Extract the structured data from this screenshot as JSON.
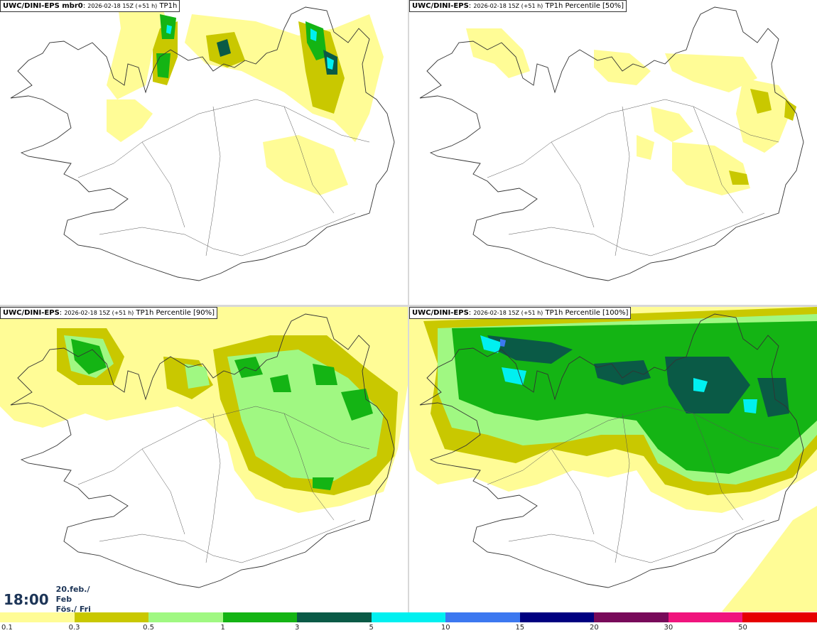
{
  "panels": [
    {
      "model": "UWC/DINI-EPS mbr0",
      "run": "2026-02-18 15Z (+51 h)",
      "field": "TP1h"
    },
    {
      "model": "UWC/DINI-EPS",
      "run": "2026-02-18 15Z (+51 h)",
      "field": "TP1h Percentile [50%]"
    },
    {
      "model": "UWC/DINI-EPS",
      "run": "2026-02-18 15Z (+51 h)",
      "field": "TP1h Percentile [90%]"
    },
    {
      "model": "UWC/DINI-EPS",
      "run": "2026-02-18 15Z (+51 h)",
      "field": "TP1h Percentile [100%]"
    }
  ],
  "valid_time": {
    "time": "18:00",
    "date_line1": "20.feb./ Feb",
    "date_line2": "Fös./ Fri"
  },
  "legend": {
    "colors": [
      "#fffc96",
      "#c9c800",
      "#a0f882",
      "#14b414",
      "#0a5a46",
      "#00f0f0",
      "#3c78f0",
      "#000080",
      "#780a5a",
      "#f0147d",
      "#e60000"
    ],
    "ticks": [
      "0.1",
      "0.3",
      "0.5",
      "1",
      "3",
      "5",
      "10",
      "15",
      "20",
      "30",
      "50"
    ]
  }
}
